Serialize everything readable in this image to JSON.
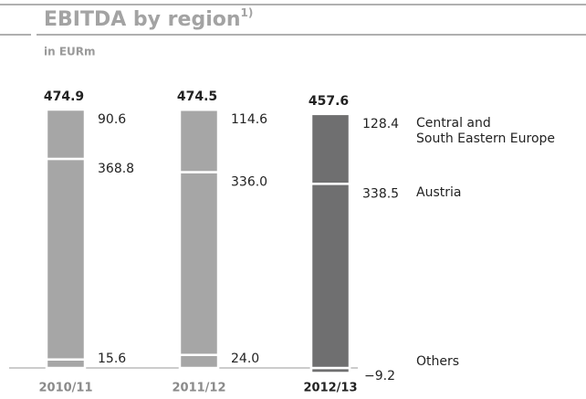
{
  "chart_data": {
    "type": "stacked_bar",
    "title": "EBITDA by region",
    "title_note": "1)",
    "subtitle": "in EURm",
    "categories": [
      "2010/11",
      "2011/12",
      "2012/13"
    ],
    "totals": [
      474.9,
      474.5,
      457.6
    ],
    "bar_colors": [
      "#a6a6a6",
      "#a6a6a6",
      "#6f6f70"
    ],
    "series": [
      {
        "name": "Others",
        "values": [
          15.6,
          24.0,
          -9.2
        ],
        "value_labels": [
          "15.6",
          "24.0",
          "−9.2"
        ]
      },
      {
        "name": "Austria",
        "values": [
          368.8,
          336.0,
          338.5
        ],
        "value_labels": [
          "368.8",
          "336.0",
          "338.5"
        ]
      },
      {
        "name": "Central and\nSouth Eastern Europe",
        "values": [
          90.6,
          114.6,
          128.4
        ],
        "value_labels": [
          "90.6",
          "114.6",
          "128.4"
        ]
      }
    ]
  }
}
